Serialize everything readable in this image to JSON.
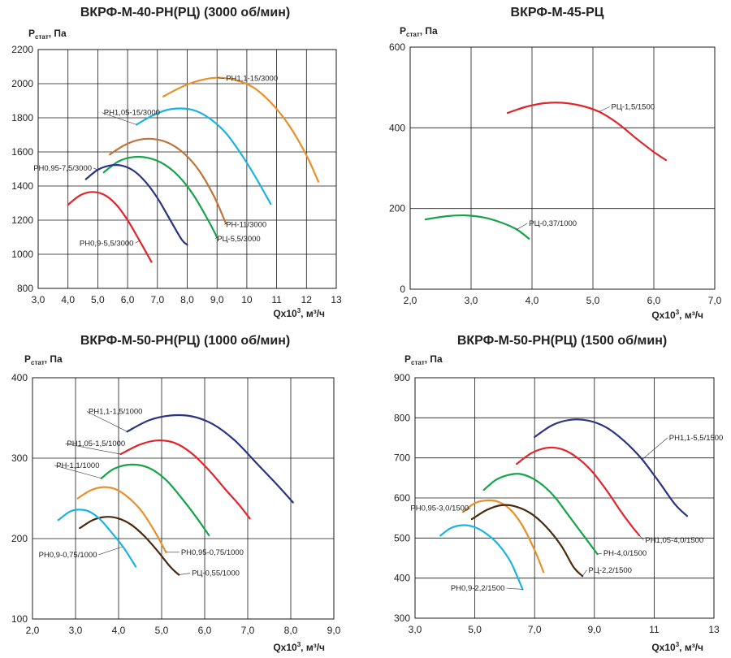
{
  "colors": {
    "orange": "#E8912A",
    "cyan": "#1BB3E3",
    "brown": "#C0733A",
    "green": "#17A34A",
    "navy": "#2B3480",
    "red": "#E2242B",
    "darkbrown": "#4A2A0C"
  },
  "chart_data": [
    {
      "type": "line",
      "title": "ВКРФ-М-40-РН(РЦ) (3000 об/мин)",
      "ylabel": "P",
      "ylabel_sub": "стат",
      "ylabel_unit": ", Па",
      "xlabel": "Qx10",
      "xlabel_sup": "3",
      "xlabel_unit": ", м³/ч",
      "xlim": [
        3,
        13
      ],
      "ylim": [
        800,
        2200
      ],
      "xticks": [
        3,
        4,
        5,
        6,
        7,
        8,
        9,
        10,
        11,
        12,
        13
      ],
      "xtick_labels": [
        "3,0",
        "4,0",
        "5,0",
        "6,0",
        "7,0",
        "8,0",
        "9,0",
        "10",
        "11",
        "12",
        "13"
      ],
      "yticks": [
        800,
        1000,
        1200,
        1400,
        1600,
        1800,
        2000,
        2200
      ],
      "ytick_labels": [
        "800",
        "1000",
        "1200",
        "1400",
        "1600",
        "1800",
        "2000",
        "2200"
      ],
      "grid": true,
      "series": [
        {
          "name": "РН1,1-15/3000",
          "color": "orange",
          "label_at": [
            9.3,
            2030
          ],
          "label_anchor": "start",
          "x": [
            7.2,
            7.8,
            8.4,
            9.0,
            9.6,
            10.2,
            10.8,
            11.4,
            12.0,
            12.4
          ],
          "y": [
            1925,
            1980,
            2018,
            2035,
            2022,
            1980,
            1890,
            1760,
            1580,
            1425
          ]
        },
        {
          "name": "РН1,05-15/3000",
          "color": "cyan",
          "label_at": [
            5.2,
            1830
          ],
          "label_anchor": "start",
          "x": [
            6.3,
            6.8,
            7.3,
            7.8,
            8.3,
            8.8,
            9.3,
            9.8,
            10.3,
            10.8
          ],
          "y": [
            1760,
            1810,
            1845,
            1855,
            1840,
            1790,
            1710,
            1590,
            1450,
            1295
          ]
        },
        {
          "name": "РН-11/3000",
          "color": "brown",
          "label_at": [
            9.3,
            1175
          ],
          "label_anchor": "start",
          "x": [
            5.4,
            5.9,
            6.4,
            6.9,
            7.4,
            7.9,
            8.4,
            8.9,
            9.3
          ],
          "y": [
            1585,
            1640,
            1672,
            1675,
            1650,
            1590,
            1490,
            1340,
            1180
          ]
        },
        {
          "name": "РЦ-5,5/3000",
          "color": "green",
          "label_at": [
            9.0,
            1090
          ],
          "label_anchor": "start",
          "x": [
            5.2,
            5.7,
            6.2,
            6.7,
            7.2,
            7.7,
            8.2,
            8.7,
            9.0
          ],
          "y": [
            1480,
            1545,
            1570,
            1565,
            1530,
            1460,
            1350,
            1200,
            1100
          ]
        },
        {
          "name": "РН0,95-7,5/3000",
          "color": "navy",
          "label_at": [
            4.8,
            1505
          ],
          "label_anchor": "end",
          "x": [
            4.6,
            5.0,
            5.4,
            5.8,
            6.2,
            6.6,
            7.0,
            7.4,
            7.8,
            8.0
          ],
          "y": [
            1440,
            1495,
            1520,
            1520,
            1490,
            1425,
            1330,
            1210,
            1090,
            1055
          ]
        },
        {
          "name": "РН0,9-5,5/3000",
          "color": "red",
          "label_at": [
            6.2,
            1065
          ],
          "label_anchor": "end",
          "x": [
            4.0,
            4.4,
            4.8,
            5.2,
            5.6,
            6.0,
            6.4,
            6.8
          ],
          "y": [
            1290,
            1345,
            1365,
            1350,
            1295,
            1200,
            1080,
            955
          ]
        }
      ]
    },
    {
      "type": "line",
      "title": "ВКРФ-М-45-РЦ",
      "ylabel": "P",
      "ylabel_sub": "стат",
      "ylabel_unit": ", Па",
      "xlabel": "Qx10",
      "xlabel_sup": "3",
      "xlabel_unit": ", м³/ч",
      "xlim": [
        2,
        7
      ],
      "ylim": [
        0,
        600
      ],
      "xticks": [
        2,
        3,
        4,
        5,
        6,
        7
      ],
      "xtick_labels": [
        "2,0",
        "3,0",
        "4,0",
        "5,0",
        "6,0",
        "7,0"
      ],
      "yticks": [
        0,
        200,
        400,
        600
      ],
      "ytick_labels": [
        "0",
        "200",
        "400",
        "600"
      ],
      "grid": true,
      "series": [
        {
          "name": "РЦ-1,5/1500",
          "color": "red",
          "label_at": [
            5.3,
            452
          ],
          "label_anchor": "start",
          "x": [
            3.6,
            3.9,
            4.2,
            4.5,
            4.8,
            5.1,
            5.4,
            5.7,
            6.0,
            6.2
          ],
          "y": [
            437,
            452,
            461,
            462,
            455,
            440,
            412,
            375,
            340,
            320
          ]
        },
        {
          "name": "РЦ-0,37/1000",
          "color": "green",
          "label_at": [
            3.95,
            163
          ],
          "label_anchor": "start",
          "x": [
            2.25,
            2.6,
            2.9,
            3.2,
            3.5,
            3.75,
            3.95
          ],
          "y": [
            173,
            181,
            183,
            178,
            165,
            148,
            125
          ]
        }
      ]
    },
    {
      "type": "line",
      "title": "ВКРФ-М-50-РН(РЦ) (1000 об/мин)",
      "ylabel": "P",
      "ylabel_sub": "стат",
      "ylabel_unit": ", Па",
      "xlabel": "Qx10",
      "xlabel_sup": "3",
      "xlabel_unit": ", м³/ч",
      "xlim": [
        2,
        9
      ],
      "ylim": [
        100,
        400
      ],
      "xticks": [
        2,
        3,
        4,
        5,
        6,
        7,
        8,
        9
      ],
      "xtick_labels": [
        "2,0",
        "3,0",
        "4,0",
        "5,0",
        "6,0",
        "7,0",
        "8,0",
        "9,0"
      ],
      "yticks": [
        100,
        200,
        300,
        400
      ],
      "ytick_labels": [
        "100",
        "200",
        "300",
        "400"
      ],
      "grid": true,
      "series": [
        {
          "name": "РН1,1-1,5/1000",
          "color": "navy",
          "label_at": [
            3.3,
            358
          ],
          "label_anchor": "start",
          "x": [
            4.2,
            4.7,
            5.2,
            5.7,
            6.2,
            6.7,
            7.2,
            7.7,
            8.05
          ],
          "y": [
            333,
            347,
            353,
            352,
            342,
            322,
            294,
            266,
            245
          ]
        },
        {
          "name": "РН1,05-1,5/1000",
          "color": "red",
          "label_at": [
            2.8,
            318
          ],
          "label_anchor": "start",
          "x": [
            4.05,
            4.5,
            4.9,
            5.3,
            5.7,
            6.1,
            6.5,
            6.8,
            7.05
          ],
          "y": [
            305,
            317,
            322,
            319,
            306,
            285,
            260,
            242,
            225
          ]
        },
        {
          "name": "РН-1,1/1000",
          "color": "green",
          "label_at": [
            2.55,
            291
          ],
          "label_anchor": "start",
          "x": [
            3.6,
            3.9,
            4.3,
            4.7,
            5.1,
            5.5,
            5.8,
            6.1
          ],
          "y": [
            275,
            287,
            292,
            288,
            273,
            248,
            227,
            204
          ]
        },
        {
          "name": "РН0,95-0,75/1000",
          "color": "orange",
          "label_at": [
            5.45,
            183
          ],
          "label_anchor": "start",
          "x": [
            3.05,
            3.35,
            3.65,
            3.95,
            4.25,
            4.55,
            4.85,
            5.1
          ],
          "y": [
            250,
            260,
            264,
            261,
            250,
            233,
            208,
            183
          ]
        },
        {
          "name": "РЦ-0,55/1000",
          "color": "darkbrown",
          "label_at": [
            5.7,
            157
          ],
          "label_anchor": "start",
          "x": [
            3.1,
            3.4,
            3.7,
            4.0,
            4.3,
            4.6,
            4.9,
            5.2,
            5.4
          ],
          "y": [
            213,
            223,
            227,
            225,
            217,
            203,
            185,
            165,
            155
          ]
        },
        {
          "name": "РН0,9-0,75/1000",
          "color": "cyan",
          "label_at": [
            3.5,
            180
          ],
          "label_anchor": "end",
          "x": [
            2.6,
            2.85,
            3.05,
            3.3,
            3.55,
            3.8,
            4.1,
            4.4
          ],
          "y": [
            223,
            233,
            236,
            234,
            225,
            210,
            190,
            165
          ]
        }
      ]
    },
    {
      "type": "line",
      "title": "ВКРФ-М-50-РН(РЦ) (1500 об/мин)",
      "ylabel": "P",
      "ylabel_sub": "стат",
      "ylabel_unit": ", Па",
      "xlabel": "Qx10",
      "xlabel_sup": "3",
      "xlabel_unit": ", м³/ч",
      "xlim": [
        3,
        13
      ],
      "ylim": [
        300,
        900
      ],
      "xticks": [
        3,
        5,
        7,
        9,
        11,
        13
      ],
      "xtick_labels": [
        "3,0",
        "5,0",
        "7,0",
        "9,0",
        "11",
        "13"
      ],
      "yticks": [
        300,
        400,
        500,
        600,
        700,
        800,
        900
      ],
      "ytick_labels": [
        "300",
        "400",
        "500",
        "600",
        "700",
        "800",
        "900"
      ],
      "grid": true,
      "series": [
        {
          "name": "РН1,1-5,5/1500",
          "color": "navy",
          "label_at": [
            11.5,
            750
          ],
          "label_anchor": "start",
          "x": [
            7.0,
            7.6,
            8.2,
            8.8,
            9.4,
            10.0,
            10.6,
            11.2,
            11.7,
            12.1
          ],
          "y": [
            752,
            782,
            795,
            793,
            776,
            742,
            696,
            636,
            584,
            555
          ]
        },
        {
          "name": "РН1,05-4,0/1500",
          "color": "red",
          "label_at": [
            10.7,
            495
          ],
          "label_anchor": "start",
          "x": [
            6.4,
            6.9,
            7.4,
            7.9,
            8.4,
            8.9,
            9.4,
            9.9,
            10.3,
            10.5
          ],
          "y": [
            685,
            712,
            725,
            722,
            702,
            668,
            620,
            565,
            525,
            507
          ]
        },
        {
          "name": "РН-4,0/1500",
          "color": "green",
          "label_at": [
            9.3,
            462
          ],
          "label_anchor": "start",
          "x": [
            5.3,
            5.7,
            6.1,
            6.5,
            6.9,
            7.3,
            7.7,
            8.1,
            8.5,
            8.9,
            9.1
          ],
          "y": [
            620,
            645,
            657,
            660,
            650,
            630,
            600,
            560,
            520,
            480,
            460
          ]
        },
        {
          "name": "РН0,95-3,0/1500",
          "color": "orange",
          "label_at": [
            4.8,
            575
          ],
          "label_anchor": "end",
          "x": [
            4.6,
            5.0,
            5.4,
            5.8,
            6.2,
            6.6,
            7.0,
            7.3
          ],
          "y": [
            565,
            587,
            594,
            590,
            570,
            530,
            470,
            415
          ]
        },
        {
          "name": "РЦ-2,2/1500",
          "color": "darkbrown",
          "label_at": [
            8.8,
            420
          ],
          "label_anchor": "start",
          "x": [
            4.9,
            5.4,
            5.9,
            6.4,
            6.9,
            7.4,
            7.9,
            8.3,
            8.6
          ],
          "y": [
            547,
            570,
            582,
            578,
            560,
            527,
            480,
            428,
            405
          ]
        },
        {
          "name": "РН0,9-2,2/1500",
          "color": "cyan",
          "label_at": [
            6.0,
            375
          ],
          "label_anchor": "end",
          "x": [
            3.85,
            4.2,
            4.6,
            5.0,
            5.4,
            5.8,
            6.2,
            6.6
          ],
          "y": [
            506,
            525,
            532,
            527,
            510,
            483,
            440,
            372
          ]
        }
      ]
    }
  ]
}
